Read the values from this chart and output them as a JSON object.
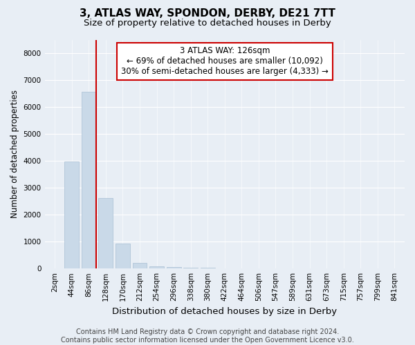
{
  "title": "3, ATLAS WAY, SPONDON, DERBY, DE21 7TT",
  "subtitle": "Size of property relative to detached houses in Derby",
  "xlabel": "Distribution of detached houses by size in Derby",
  "ylabel": "Number of detached properties",
  "categories": [
    "2sqm",
    "44sqm",
    "86sqm",
    "128sqm",
    "170sqm",
    "212sqm",
    "254sqm",
    "296sqm",
    "338sqm",
    "380sqm",
    "422sqm",
    "464sqm",
    "506sqm",
    "547sqm",
    "589sqm",
    "631sqm",
    "673sqm",
    "715sqm",
    "757sqm",
    "799sqm",
    "841sqm"
  ],
  "values": [
    0,
    3980,
    6560,
    2620,
    940,
    200,
    80,
    50,
    30,
    20,
    0,
    0,
    0,
    0,
    0,
    0,
    0,
    0,
    0,
    0,
    0
  ],
  "bar_color": "#c9d9e8",
  "bar_edge_color": "#a8bfd4",
  "marker_line_color": "#cc0000",
  "annotation_line1": "3 ATLAS WAY: 126sqm",
  "annotation_line2": "← 69% of detached houses are smaller (10,092)",
  "annotation_line3": "30% of semi-detached houses are larger (4,333) →",
  "annotation_box_color": "#ffffff",
  "annotation_box_edge": "#cc0000",
  "ylim": [
    0,
    8500
  ],
  "yticks": [
    0,
    1000,
    2000,
    3000,
    4000,
    5000,
    6000,
    7000,
    8000
  ],
  "footer": "Contains HM Land Registry data © Crown copyright and database right 2024.\nContains public sector information licensed under the Open Government Licence v3.0.",
  "bg_color": "#e8eef5",
  "plot_bg_color": "#e8eef5",
  "title_fontsize": 11,
  "subtitle_fontsize": 9.5,
  "xlabel_fontsize": 9.5,
  "ylabel_fontsize": 8.5,
  "tick_fontsize": 7.5,
  "footer_fontsize": 7
}
